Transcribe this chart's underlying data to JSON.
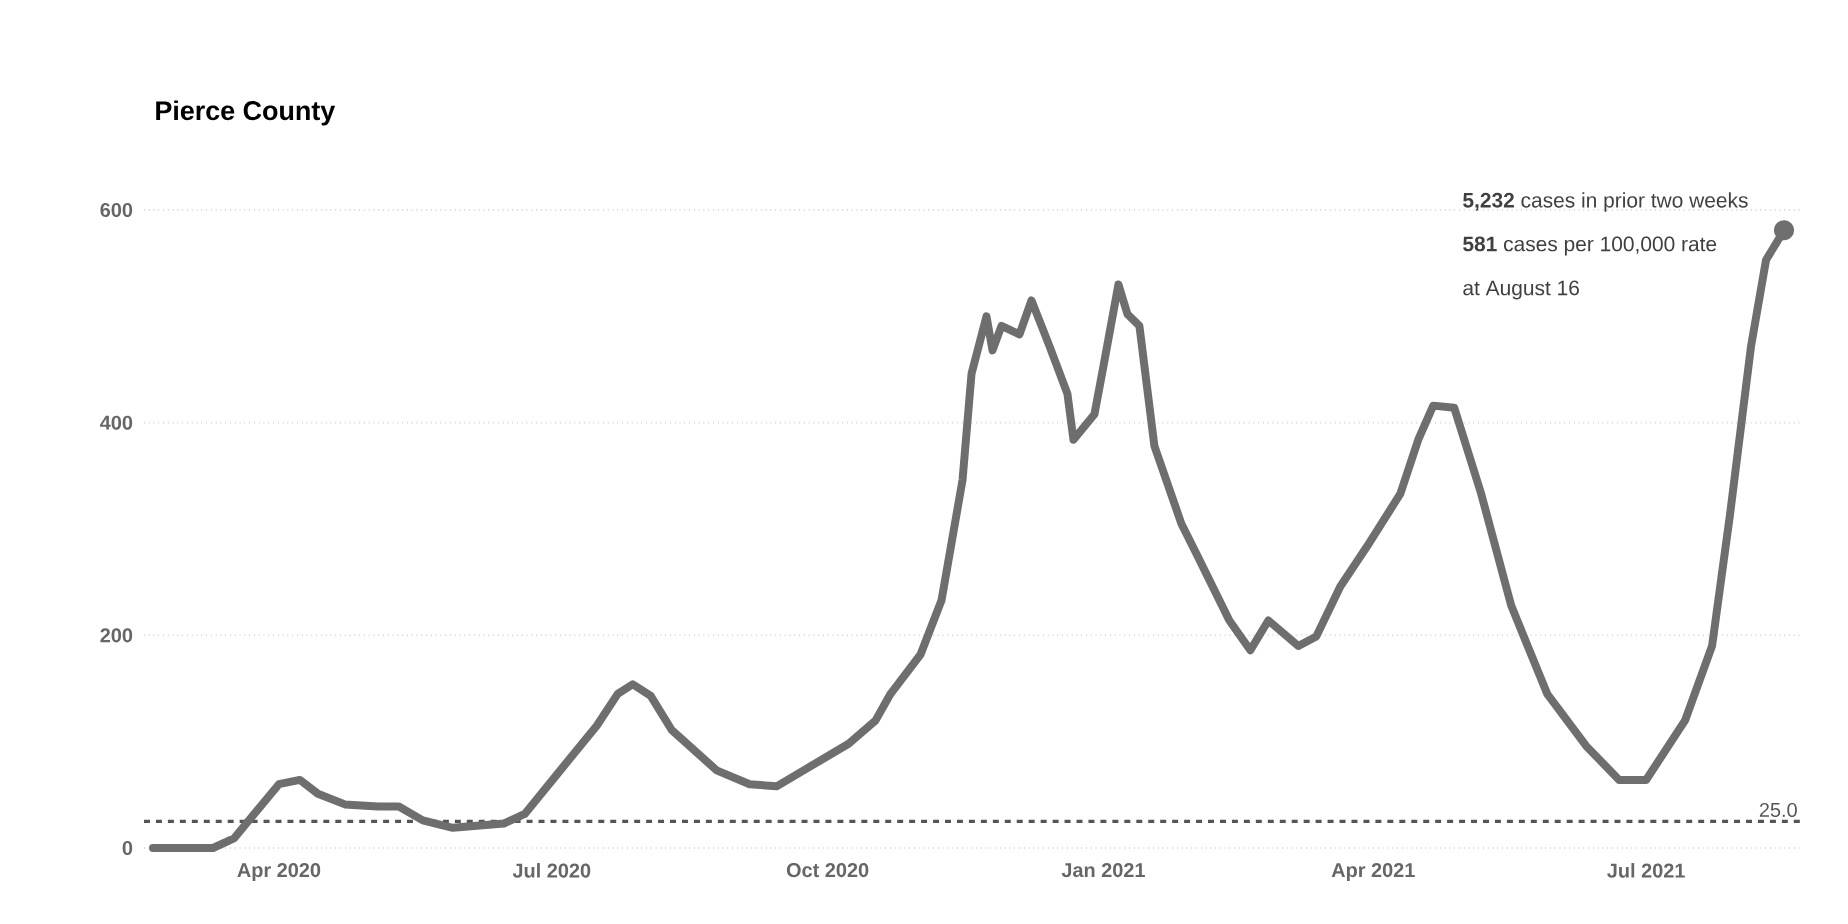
{
  "chart_data": {
    "type": "line",
    "title": "Pierce County",
    "x": [
      "2020-02-19",
      "2020-03-10",
      "2020-03-17",
      "2020-04-01",
      "2020-04-08",
      "2020-04-14",
      "2020-04-23",
      "2020-05-04",
      "2020-05-11",
      "2020-05-19",
      "2020-05-29",
      "2020-06-15",
      "2020-06-22",
      "2020-07-05",
      "2020-07-16",
      "2020-07-23",
      "2020-07-28",
      "2020-08-03",
      "2020-08-10",
      "2020-08-25",
      "2020-09-05",
      "2020-09-14",
      "2020-09-23",
      "2020-10-08",
      "2020-10-17",
      "2020-10-22",
      "2020-11-01",
      "2020-11-08",
      "2020-11-15",
      "2020-11-18",
      "2020-11-23",
      "2020-11-25",
      "2020-11-28",
      "2020-12-04",
      "2020-12-08",
      "2020-12-14",
      "2020-12-20",
      "2020-12-22",
      "2020-12-29",
      "2021-01-01",
      "2021-01-06",
      "2021-01-09",
      "2021-01-13",
      "2021-01-18",
      "2021-01-27",
      "2021-02-02",
      "2021-02-12",
      "2021-02-19",
      "2021-02-25",
      "2021-03-07",
      "2021-03-13",
      "2021-03-21",
      "2021-03-30",
      "2021-04-10",
      "2021-04-16",
      "2021-04-21",
      "2021-04-28",
      "2021-05-07",
      "2021-05-17",
      "2021-05-29",
      "2021-06-11",
      "2021-06-22",
      "2021-07-01",
      "2021-07-14",
      "2021-07-23",
      "2021-07-29",
      "2021-08-05",
      "2021-08-10",
      "2021-08-16"
    ],
    "series": [
      {
        "color": "#6e6e6e",
        "values": [
          0,
          0,
          9,
          60,
          64,
          51,
          41,
          39,
          39,
          26,
          19,
          23,
          32,
          77,
          115,
          145,
          154,
          143,
          111,
          73,
          60,
          58,
          73,
          98,
          120,
          145,
          182,
          233,
          346,
          446,
          500,
          468,
          491,
          483,
          515,
          472,
          427,
          384,
          408,
          453,
          530,
          502,
          491,
          378,
          305,
          271,
          214,
          186,
          214,
          190,
          199,
          246,
          284,
          333,
          384,
          416,
          414,
          333,
          228,
          145,
          96,
          64,
          64,
          120,
          190,
          314,
          472,
          553,
          581
        ]
      }
    ],
    "xlim": [
      "2020-02-16",
      "2021-08-22"
    ],
    "xticks": [
      {
        "value": "2020-04-01",
        "label": "Apr 2020"
      },
      {
        "value": "2020-07-01",
        "label": "Jul 2020"
      },
      {
        "value": "2020-10-01",
        "label": "Oct 2020"
      },
      {
        "value": "2021-01-01",
        "label": "Jan 2021"
      },
      {
        "value": "2021-04-01",
        "label": "Apr 2021"
      },
      {
        "value": "2021-07-01",
        "label": "Jul 2021"
      }
    ],
    "ylim": [
      0,
      600
    ],
    "yticks": [
      0,
      200,
      400,
      600
    ],
    "grid": "y",
    "ref_lines": [
      {
        "axis": "y",
        "value": 25,
        "label": "25.0",
        "line_style": "dashed",
        "color": "#555555"
      }
    ],
    "annotations": [
      "**5,232** cases in prior two weeks",
      "**581** cases per 100,000 rate",
      "at August 16"
    ]
  }
}
